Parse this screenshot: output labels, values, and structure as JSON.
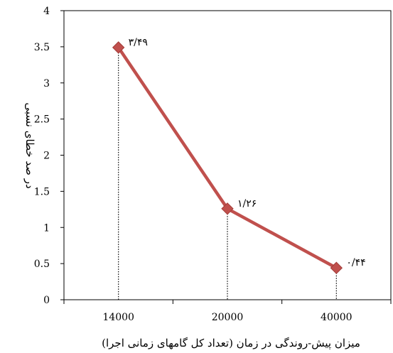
{
  "chart_data": {
    "type": "line",
    "categories": [
      "14000",
      "20000",
      "40000"
    ],
    "series": [
      {
        "values": [
          3.49,
          1.26,
          0.44
        ],
        "data_labels": [
          "۳/۴۹",
          "۱/۲۶",
          "۰/۴۴"
        ],
        "color": "#c0504d",
        "marker": "diamond"
      }
    ],
    "xlabel": "میزان پیش-روندگی در زمان (تعداد کل گامهای زمانی اجرا)",
    "ylabel": "در صد خطای نسبی",
    "ylim": [
      0,
      4
    ],
    "yticks": [
      "0",
      "0.5",
      "1",
      "1.5",
      "2",
      "2.5",
      "3",
      "3.5",
      "4"
    ],
    "drop_lines": "dotted",
    "grid": false,
    "legend": "none"
  }
}
